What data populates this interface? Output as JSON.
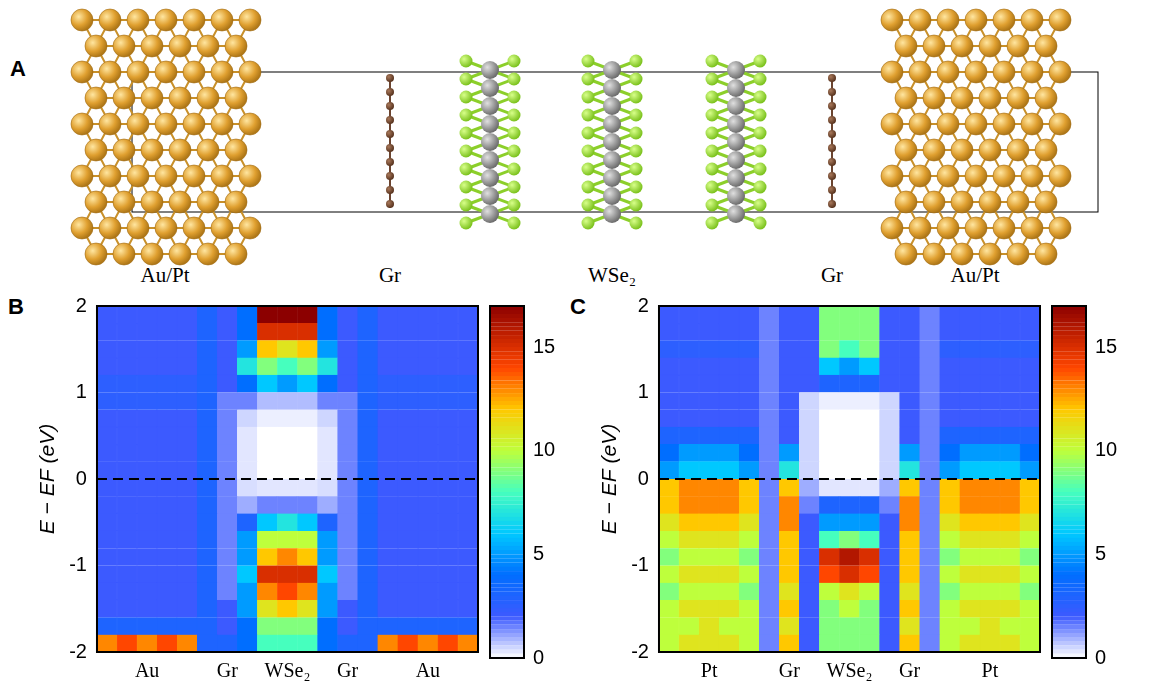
{
  "structure": {
    "letter": "A",
    "labels": [
      "Au/Pt",
      "Gr",
      "WSe₂",
      "Gr",
      "Au/Pt"
    ]
  },
  "chart_data": [
    {
      "letter": "B",
      "type": "heatmap",
      "y_label": "E − EF (eV)",
      "categories": [
        null,
        null,
        "Au",
        null,
        null,
        null,
        "Gr",
        null,
        null,
        "WSe₂",
        null,
        null,
        "Gr",
        null,
        null,
        null,
        "Au",
        null,
        null
      ],
      "y_bins": [
        -2,
        -1.8,
        -1.6,
        -1.4,
        -1.2,
        -1,
        -0.8,
        -0.6,
        -0.4,
        -0.2,
        0,
        0.2,
        0.4,
        0.6,
        0.8,
        1,
        1.2,
        1.4,
        1.6,
        1.8,
        2
      ],
      "cells": [
        [
          13,
          14,
          13,
          14,
          13,
          3,
          3,
          4,
          8,
          8,
          8,
          4,
          3,
          3,
          13,
          14,
          13,
          14,
          13
        ],
        [
          3,
          3,
          3,
          3,
          3,
          3,
          2,
          4,
          9,
          9,
          9,
          4,
          2,
          3,
          3,
          3,
          3,
          3,
          3
        ],
        [
          2,
          2,
          2,
          2,
          2,
          3,
          2,
          5,
          11,
          12,
          11,
          5,
          2,
          3,
          2,
          2,
          2,
          2,
          2
        ],
        [
          2,
          2,
          2,
          2,
          2,
          3,
          1.5,
          5,
          13,
          14,
          13,
          5,
          1.5,
          3,
          2,
          2,
          2,
          2,
          2
        ],
        [
          2,
          2,
          2,
          2,
          2,
          3,
          1.5,
          6,
          15,
          15,
          15,
          6,
          1.5,
          3,
          2,
          2,
          2,
          2,
          2
        ],
        [
          2,
          2,
          2,
          2,
          2,
          3,
          1.5,
          5,
          12,
          13,
          12,
          5,
          1.5,
          3,
          2,
          2,
          2,
          2,
          2
        ],
        [
          2,
          2,
          2,
          2,
          2,
          3,
          1.5,
          5,
          10,
          10,
          10,
          5,
          1.5,
          3,
          2,
          2,
          2,
          2,
          2
        ],
        [
          2,
          2,
          2,
          2,
          2,
          3,
          1.5,
          3,
          6,
          7,
          6,
          3,
          1.5,
          3,
          2,
          2,
          2,
          2,
          2
        ],
        [
          2,
          2,
          2,
          2,
          2,
          3,
          1.5,
          1,
          1.5,
          1.5,
          1.5,
          1,
          1.5,
          3,
          2,
          2,
          2,
          2,
          2
        ],
        [
          2,
          2,
          2,
          2,
          2,
          3,
          1.5,
          0.4,
          0.3,
          0.3,
          0.3,
          0.4,
          1.5,
          3,
          2,
          2,
          2,
          2,
          2
        ],
        [
          2,
          2,
          2,
          2,
          2,
          3,
          1.5,
          0.3,
          0,
          0,
          0,
          0.3,
          1.5,
          3,
          2,
          2,
          2,
          2,
          2
        ],
        [
          2,
          2,
          2,
          2,
          2,
          3,
          1.5,
          0.3,
          0,
          0,
          0,
          0.3,
          1.5,
          3,
          2,
          2,
          2,
          2,
          2
        ],
        [
          2,
          2,
          2,
          2,
          2,
          3,
          1.5,
          0.3,
          0,
          0,
          0,
          0.3,
          1.5,
          3,
          2,
          2,
          2,
          2,
          2
        ],
        [
          2,
          2,
          2,
          2,
          2,
          3,
          1.5,
          0.5,
          0.2,
          0.2,
          0.2,
          0.5,
          1.5,
          3,
          2,
          2,
          2,
          2,
          2
        ],
        [
          2.5,
          2.5,
          2.5,
          2.5,
          2.5,
          3,
          1.5,
          1.5,
          0.8,
          0.8,
          0.8,
          1.5,
          1.5,
          3,
          2.5,
          2.5,
          2.5,
          2.5,
          2.5
        ],
        [
          2.5,
          2.5,
          2.5,
          2.5,
          2.5,
          3,
          2,
          4,
          6,
          5,
          6,
          4,
          2,
          3,
          2.5,
          2.5,
          2.5,
          2.5,
          2.5
        ],
        [
          2,
          2,
          2,
          2,
          2,
          3,
          2,
          7,
          9,
          8,
          9,
          7,
          2,
          3,
          2,
          2,
          2,
          2,
          2
        ],
        [
          2,
          2,
          2,
          2,
          2,
          3,
          2,
          5,
          12,
          11,
          12,
          5,
          2,
          3,
          2,
          2,
          2,
          2,
          2
        ],
        [
          2,
          2,
          2,
          2,
          2,
          3,
          2,
          4,
          15,
          15,
          15,
          4,
          2,
          3,
          2,
          2,
          2,
          2,
          2
        ],
        [
          2,
          2,
          2,
          2,
          2,
          3,
          2,
          4,
          17,
          17,
          17,
          4,
          2,
          3,
          2,
          2,
          2,
          2,
          2
        ]
      ],
      "ylim": [
        -2,
        2
      ],
      "yticks": [
        -2,
        -1,
        0,
        1,
        2
      ],
      "hline": 0,
      "grid": false,
      "colorbar": {
        "range": [
          0,
          17
        ],
        "ticks": [
          0,
          5,
          10,
          15
        ]
      }
    },
    {
      "letter": "C",
      "type": "heatmap",
      "y_label": "E − EF (eV)",
      "categories": [
        null,
        null,
        "Pt",
        null,
        null,
        null,
        "Gr",
        null,
        null,
        "WSe₂",
        null,
        null,
        "Gr",
        null,
        null,
        null,
        "Pt",
        null,
        null
      ],
      "y_bins": [
        -2,
        -1.8,
        -1.6,
        -1.4,
        -1.2,
        -1,
        -0.8,
        -0.6,
        -0.4,
        -0.2,
        0,
        0.2,
        0.4,
        0.6,
        0.8,
        1,
        1.2,
        1.4,
        1.6,
        1.8,
        2
      ],
      "cells": [
        [
          10,
          11,
          11,
          11,
          10,
          1.5,
          12,
          2,
          9,
          9,
          9,
          2,
          12,
          1.5,
          10,
          11,
          11,
          11,
          10
        ],
        [
          10,
          10,
          11,
          10,
          10,
          1.5,
          11,
          2,
          9,
          9,
          9,
          2,
          11,
          1.5,
          10,
          10,
          11,
          10,
          10
        ],
        [
          10,
          11,
          11,
          11,
          10,
          1.5,
          12,
          2,
          9,
          10,
          9,
          2,
          12,
          1.5,
          10,
          11,
          11,
          11,
          10
        ],
        [
          9,
          10,
          10,
          10,
          9,
          1.5,
          11,
          2,
          10,
          11,
          10,
          2,
          11,
          1.5,
          9,
          10,
          10,
          10,
          9
        ],
        [
          10,
          11,
          11,
          11,
          10,
          1.5,
          12,
          2,
          14,
          15,
          14,
          2,
          12,
          1.5,
          10,
          11,
          11,
          11,
          10
        ],
        [
          9,
          10,
          10,
          10,
          9,
          1.5,
          12,
          2,
          15,
          16,
          15,
          2,
          12,
          1.5,
          9,
          10,
          10,
          10,
          9
        ],
        [
          10,
          11,
          11,
          11,
          10,
          1.5,
          12,
          2,
          8,
          9,
          8,
          2,
          12,
          1.5,
          10,
          11,
          11,
          11,
          10
        ],
        [
          11,
          12,
          12,
          12,
          11,
          1.5,
          13,
          2,
          5,
          5,
          5,
          2,
          13,
          1.5,
          11,
          12,
          12,
          12,
          11
        ],
        [
          12,
          13,
          13,
          13,
          12,
          1.5,
          13,
          1.5,
          3,
          3,
          3,
          1.5,
          13,
          1.5,
          12,
          13,
          13,
          13,
          12
        ],
        [
          12,
          13,
          13,
          13,
          12,
          1.5,
          12,
          1,
          0.3,
          0.3,
          0.3,
          1,
          12,
          1.5,
          12,
          13,
          13,
          13,
          12
        ],
        [
          5,
          6,
          6,
          6,
          5,
          1.5,
          7,
          0.5,
          0,
          0,
          0,
          0.5,
          7,
          1.5,
          5,
          6,
          6,
          6,
          5
        ],
        [
          4,
          5,
          5,
          5,
          4,
          1.5,
          5,
          0.5,
          0,
          0,
          0,
          0.5,
          5,
          1.5,
          4,
          5,
          5,
          5,
          4
        ],
        [
          3,
          3,
          3,
          3,
          3,
          1.5,
          2,
          0.5,
          0,
          0,
          0,
          0.5,
          2,
          1.5,
          3,
          3,
          3,
          3,
          3
        ],
        [
          2,
          2,
          2,
          2,
          2,
          1.5,
          2,
          0.5,
          0,
          0,
          0,
          0.5,
          2,
          1.5,
          2,
          2,
          2,
          2,
          2
        ],
        [
          2,
          2,
          2,
          2,
          2,
          1.5,
          2,
          0.5,
          0.2,
          0.2,
          0.2,
          0.5,
          2,
          1.5,
          2,
          2,
          2,
          2,
          2
        ],
        [
          2,
          2,
          2,
          2,
          2,
          1.5,
          2,
          2,
          3,
          3,
          3,
          2,
          2,
          1.5,
          2,
          2,
          2,
          2,
          2
        ],
        [
          2,
          2,
          2,
          2,
          2,
          1.5,
          2,
          2,
          6,
          5,
          6,
          2,
          2,
          1.5,
          2,
          2,
          2,
          2,
          2
        ],
        [
          2.5,
          2.5,
          2.5,
          2.5,
          2.5,
          1.5,
          2,
          2,
          9,
          8,
          9,
          2,
          2,
          1.5,
          2.5,
          2.5,
          2.5,
          2.5,
          2.5
        ],
        [
          2,
          2,
          2,
          2,
          2,
          1.5,
          2,
          2,
          9,
          9,
          9,
          2,
          2,
          1.5,
          2,
          2,
          2,
          2,
          2
        ],
        [
          2,
          2,
          2,
          2,
          2,
          1.5,
          2,
          2,
          9,
          9,
          9,
          2,
          2,
          1.5,
          2,
          2,
          2,
          2,
          2
        ]
      ],
      "ylim": [
        -2,
        2
      ],
      "yticks": [
        -2,
        -1,
        0,
        1,
        2
      ],
      "hline": 0,
      "grid": false,
      "colorbar": {
        "range": [
          0,
          17
        ],
        "ticks": [
          0,
          5,
          10,
          15
        ]
      }
    }
  ]
}
